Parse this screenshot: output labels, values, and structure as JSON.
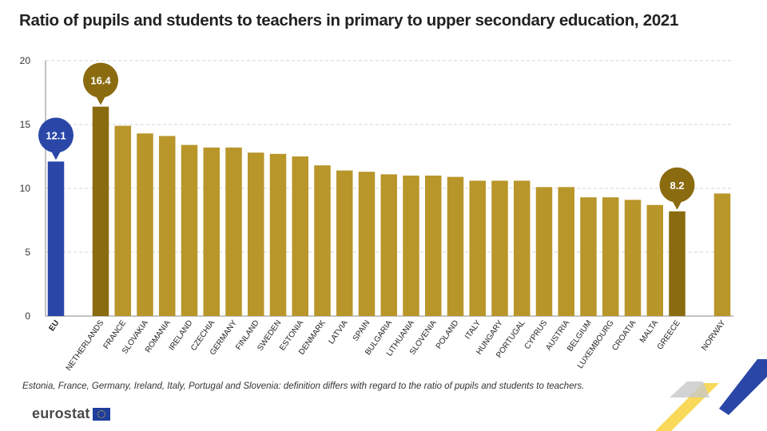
{
  "title": "Ratio of pupils and students to teachers in primary to upper secondary education, 2021",
  "footnote": "Estonia, France, Germany, Ireland, Italy, Portugal and Slovenia: definition differs with regard to the ratio of pupils and students to teachers.",
  "logo_text": "eurostat",
  "colors": {
    "eu": "#2a47a8",
    "highlight": "#8a6b0f",
    "default": "#b8962a",
    "grid": "#d5d5d5"
  },
  "chart_data": {
    "type": "bar",
    "title": "Ratio of pupils and students to teachers in primary to upper secondary education, 2021",
    "xlabel": "",
    "ylabel": "",
    "ylim": [
      0,
      20
    ],
    "yticks": [
      0,
      5,
      10,
      15,
      20
    ],
    "grid": true,
    "categories": [
      "EU",
      "NETHERLANDS",
      "FRANCE",
      "SLOVAKIA",
      "ROMANIA",
      "IRELAND",
      "CZECHIA",
      "GERMANY",
      "FINLAND",
      "SWEDEN",
      "ESTONIA",
      "DENMARK",
      "LATVIA",
      "SPAIN",
      "BULGARIA",
      "LITHUANIA",
      "SLOVENIA",
      "POLAND",
      "ITALY",
      "HUNGARY",
      "PORTUGAL",
      "CYPRUS",
      "AUSTRIA",
      "BELGIUM",
      "LUXEMBOURG",
      "CROATIA",
      "MALTA",
      "GREECE",
      "NORWAY"
    ],
    "values": [
      12.1,
      16.4,
      14.9,
      14.3,
      14.1,
      13.4,
      13.2,
      13.2,
      12.8,
      12.7,
      12.5,
      11.8,
      11.4,
      11.3,
      11.1,
      11.0,
      11.0,
      10.9,
      10.6,
      10.6,
      10.6,
      10.1,
      10.1,
      9.3,
      9.3,
      9.1,
      8.7,
      8.2,
      9.6
    ],
    "bar_roles": [
      "eu",
      "highlight",
      "default",
      "default",
      "default",
      "default",
      "default",
      "default",
      "default",
      "default",
      "default",
      "default",
      "default",
      "default",
      "default",
      "default",
      "default",
      "default",
      "default",
      "default",
      "default",
      "default",
      "default",
      "default",
      "default",
      "default",
      "default",
      "highlight",
      "default"
    ],
    "callouts": [
      {
        "category": "EU",
        "label": "12.1"
      },
      {
        "category": "NETHERLANDS",
        "label": "16.4"
      },
      {
        "category": "GREECE",
        "label": "8.2"
      }
    ]
  }
}
